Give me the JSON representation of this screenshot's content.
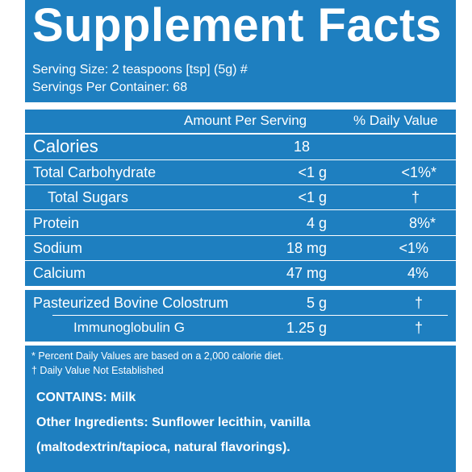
{
  "title": "Supplement Facts",
  "serving_size": "Serving Size: 2 teaspoons [tsp] (5g) #",
  "servings_per_container": "Servings Per Container: 68",
  "headers": {
    "amount": "Amount Per Serving",
    "dv": "% Daily Value"
  },
  "rows": [
    {
      "name": "Calories",
      "amount": "18",
      "dv": ""
    },
    {
      "name": "Total Carbohydrate",
      "amount": "<1 g",
      "dv": "<1%*"
    },
    {
      "name": "Total Sugars",
      "amount": "<1 g",
      "dv": "†"
    },
    {
      "name": "Protein",
      "amount": "4 g",
      "dv": "8%*"
    },
    {
      "name": "Sodium",
      "amount": "18 mg",
      "dv": "<1%"
    },
    {
      "name": "Calcium",
      "amount": "47 mg",
      "dv": "4%"
    },
    {
      "name": "Pasteurized Bovine Colostrum",
      "amount": "5 g",
      "dv": "†"
    },
    {
      "name": "Immunoglobulin G",
      "amount": "1.25 g",
      "dv": "†"
    }
  ],
  "footnotes": {
    "percent": "* Percent Daily Values are based on a 2,000 calorie diet.",
    "dagger": "† Daily Value Not Established"
  },
  "contains": "CONTAINS: Milk",
  "other_ingredients_line1": "Other Ingredients: Sunflower lecithin, vanilla",
  "other_ingredients_line2": "(maltodextrin/tapioca, natural flavorings).",
  "colors": {
    "panel": "#1e7fc0",
    "text": "#ffffff"
  }
}
